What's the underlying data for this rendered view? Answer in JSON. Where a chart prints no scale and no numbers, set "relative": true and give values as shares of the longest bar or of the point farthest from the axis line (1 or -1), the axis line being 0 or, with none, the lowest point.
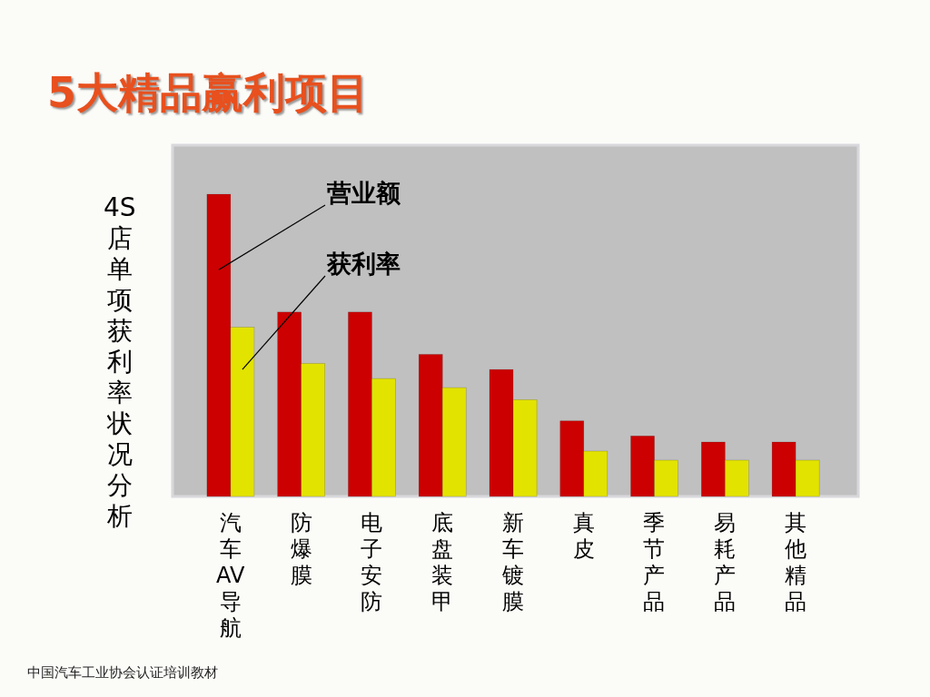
{
  "chart_data": {
    "type": "bar",
    "title": "5大精品赢利项目",
    "ylabel": "4S店单项获利率状况分析",
    "categories": [
      "汽车AV导航",
      "防爆膜",
      "电子安防",
      "底盘装甲",
      "新车镀膜",
      "真皮",
      "季节产品",
      "易耗产品",
      "其他精品"
    ],
    "series": [
      {
        "name": "营业额",
        "color": "#cc0000",
        "values": [
          1,
          0.61,
          0.61,
          0.47,
          0.42,
          0.25,
          0.2,
          0.18,
          0.18
        ]
      },
      {
        "name": "获利率",
        "color": "#e3e300",
        "values": [
          0.56,
          0.44,
          0.39,
          0.36,
          0.32,
          0.15,
          0.12,
          0.12,
          0.12
        ]
      }
    ],
    "relative": true,
    "annotations": [
      "中国汽车工业协会认证培训教材"
    ]
  }
}
